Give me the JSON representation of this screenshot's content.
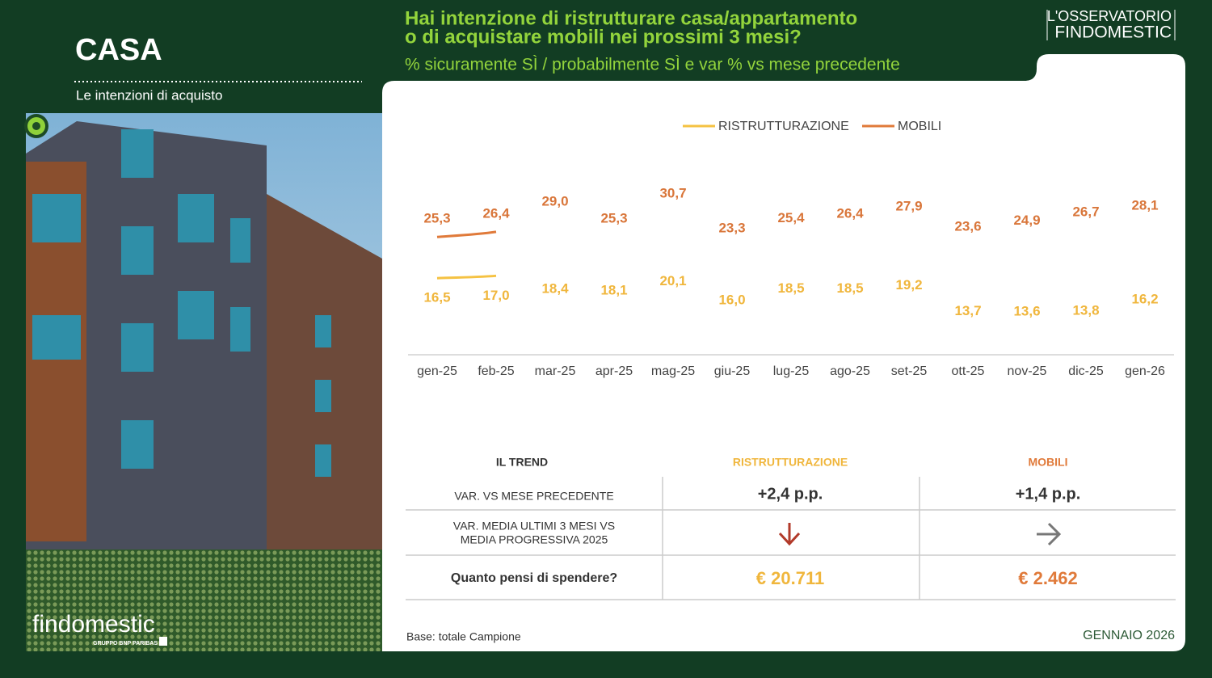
{
  "header": {
    "section": "CASA",
    "subtitle": "Le intenzioni di acquisto",
    "brand_top": "L'OSSERVATORIO",
    "brand_bottom": "FINDOMESTIC",
    "logo": "findomestic",
    "logo_group": "GRUPPO BNP PARIBAS"
  },
  "chart_data": {
    "type": "line",
    "title": [
      "Hai intenzione di ristrutturare casa/appartamento",
      "o di acquistare mobili nei prossimi 3 mesi?"
    ],
    "subtitle": "% sicuramente SÌ / probabilmente SÌ e var % vs mese precedente",
    "categories": [
      "gen-25",
      "feb-25",
      "mar-25",
      "apr-25",
      "mag-25",
      "giu-25",
      "lug-25",
      "ago-25",
      "set-25",
      "ott-25",
      "nov-25",
      "dic-25",
      "gen-26"
    ],
    "series": [
      {
        "name": "RISTRUTTURAZIONE",
        "color": "#f5c242",
        "values": [
          16.5,
          17.0,
          18.4,
          18.1,
          20.1,
          16.0,
          18.5,
          18.5,
          19.2,
          13.7,
          13.6,
          13.8,
          16.2
        ],
        "value_labels": [
          "16,5",
          "17,0",
          "18,4",
          "18,1",
          "20,1",
          "16,0",
          "18,5",
          "18,5",
          "19,2",
          "13,7",
          "13,6",
          "13,8",
          "16,2"
        ]
      },
      {
        "name": "MOBILI",
        "color": "#e07a3a",
        "values": [
          25.3,
          26.4,
          29.0,
          25.3,
          30.7,
          23.3,
          25.4,
          26.4,
          27.9,
          23.6,
          24.9,
          26.7,
          28.1
        ],
        "value_labels": [
          "25,3",
          "26,4",
          "29,0",
          "25,3",
          "30,7",
          "23,3",
          "25,4",
          "26,4",
          "27,9",
          "23,6",
          "24,9",
          "26,7",
          "28,1"
        ]
      }
    ],
    "legend": "top"
  },
  "table": {
    "header": [
      "IL TREND",
      "RISTRUTTURAZIONE",
      "MOBILI"
    ],
    "row1": [
      "VAR. VS MESE PRECEDENTE",
      "+2,4 p.p.",
      "+1,4 p.p."
    ],
    "row2_label": [
      "VAR.  MEDIA ULTIMI 3 MESI VS",
      "MEDIA PROGRESSIVA  2025"
    ],
    "row3": [
      "Quanto pensi di spendere?",
      "€ 20.711",
      "€ 2.462"
    ]
  },
  "footer": {
    "base": "Base: totale Campione",
    "date": "GENNAIO 2026"
  }
}
